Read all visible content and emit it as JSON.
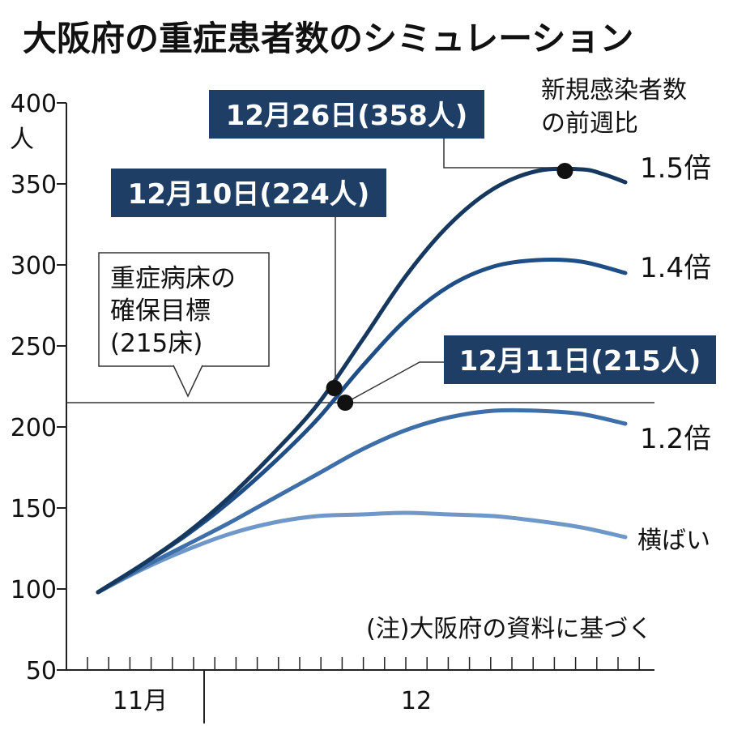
{
  "chart_data": {
    "type": "line",
    "title": "大阪府の重症患者数のシミュレーション",
    "y_unit": "人",
    "ylim": [
      50,
      400
    ],
    "yticks": [
      400,
      350,
      300,
      250,
      200,
      150,
      100,
      50
    ],
    "x_labels": [
      "11月",
      "12"
    ],
    "xlim": [
      0,
      50
    ],
    "legend_title": "新規感染者数の前週比",
    "series": [
      {
        "name": "1.5倍",
        "color": "#16375e",
        "x": [
          0,
          4,
          8,
          12,
          16,
          20,
          24,
          28,
          32,
          36,
          40,
          44,
          46,
          48
        ],
        "y": [
          98,
          115,
          134,
          157,
          184,
          214,
          253,
          293,
          325,
          347,
          358,
          359,
          356,
          351
        ]
      },
      {
        "name": "1.4倍",
        "color": "#1f4e86",
        "x": [
          0,
          4,
          8,
          12,
          16,
          20,
          24,
          28,
          32,
          36,
          40,
          44,
          48
        ],
        "y": [
          98,
          115,
          133,
          154,
          178,
          205,
          237,
          266,
          287,
          299,
          303,
          302,
          295
        ]
      },
      {
        "name": "1.2倍",
        "color": "#3e6fa8",
        "x": [
          0,
          4,
          8,
          12,
          16,
          20,
          24,
          28,
          32,
          36,
          40,
          44,
          48
        ],
        "y": [
          98,
          113,
          127,
          141,
          156,
          171,
          186,
          198,
          206,
          210,
          210,
          208,
          202
        ]
      },
      {
        "name": "横ばい",
        "color": "#6f98c8",
        "x": [
          0,
          4,
          8,
          12,
          16,
          20,
          24,
          28,
          32,
          36,
          40,
          44,
          48
        ],
        "y": [
          98,
          112,
          124,
          134,
          141,
          145,
          146,
          147,
          146,
          145,
          142,
          138,
          132
        ]
      }
    ],
    "reference_line": {
      "value": 215
    },
    "points": [
      {
        "series": "1.5倍",
        "x": 21.5,
        "y": 224,
        "label": "12月10日(224人)"
      },
      {
        "series": "1.4倍",
        "x": 22.5,
        "y": 215,
        "label": "12月11日(215人)"
      },
      {
        "series": "1.5倍",
        "x": 42.5,
        "y": 358,
        "label": "12月26日(358人)"
      }
    ],
    "annotations": {
      "target_lines": [
        "重症病床の",
        "確保目標",
        "(215床)"
      ],
      "note": "(注)大阪府の資料に基づく"
    }
  }
}
